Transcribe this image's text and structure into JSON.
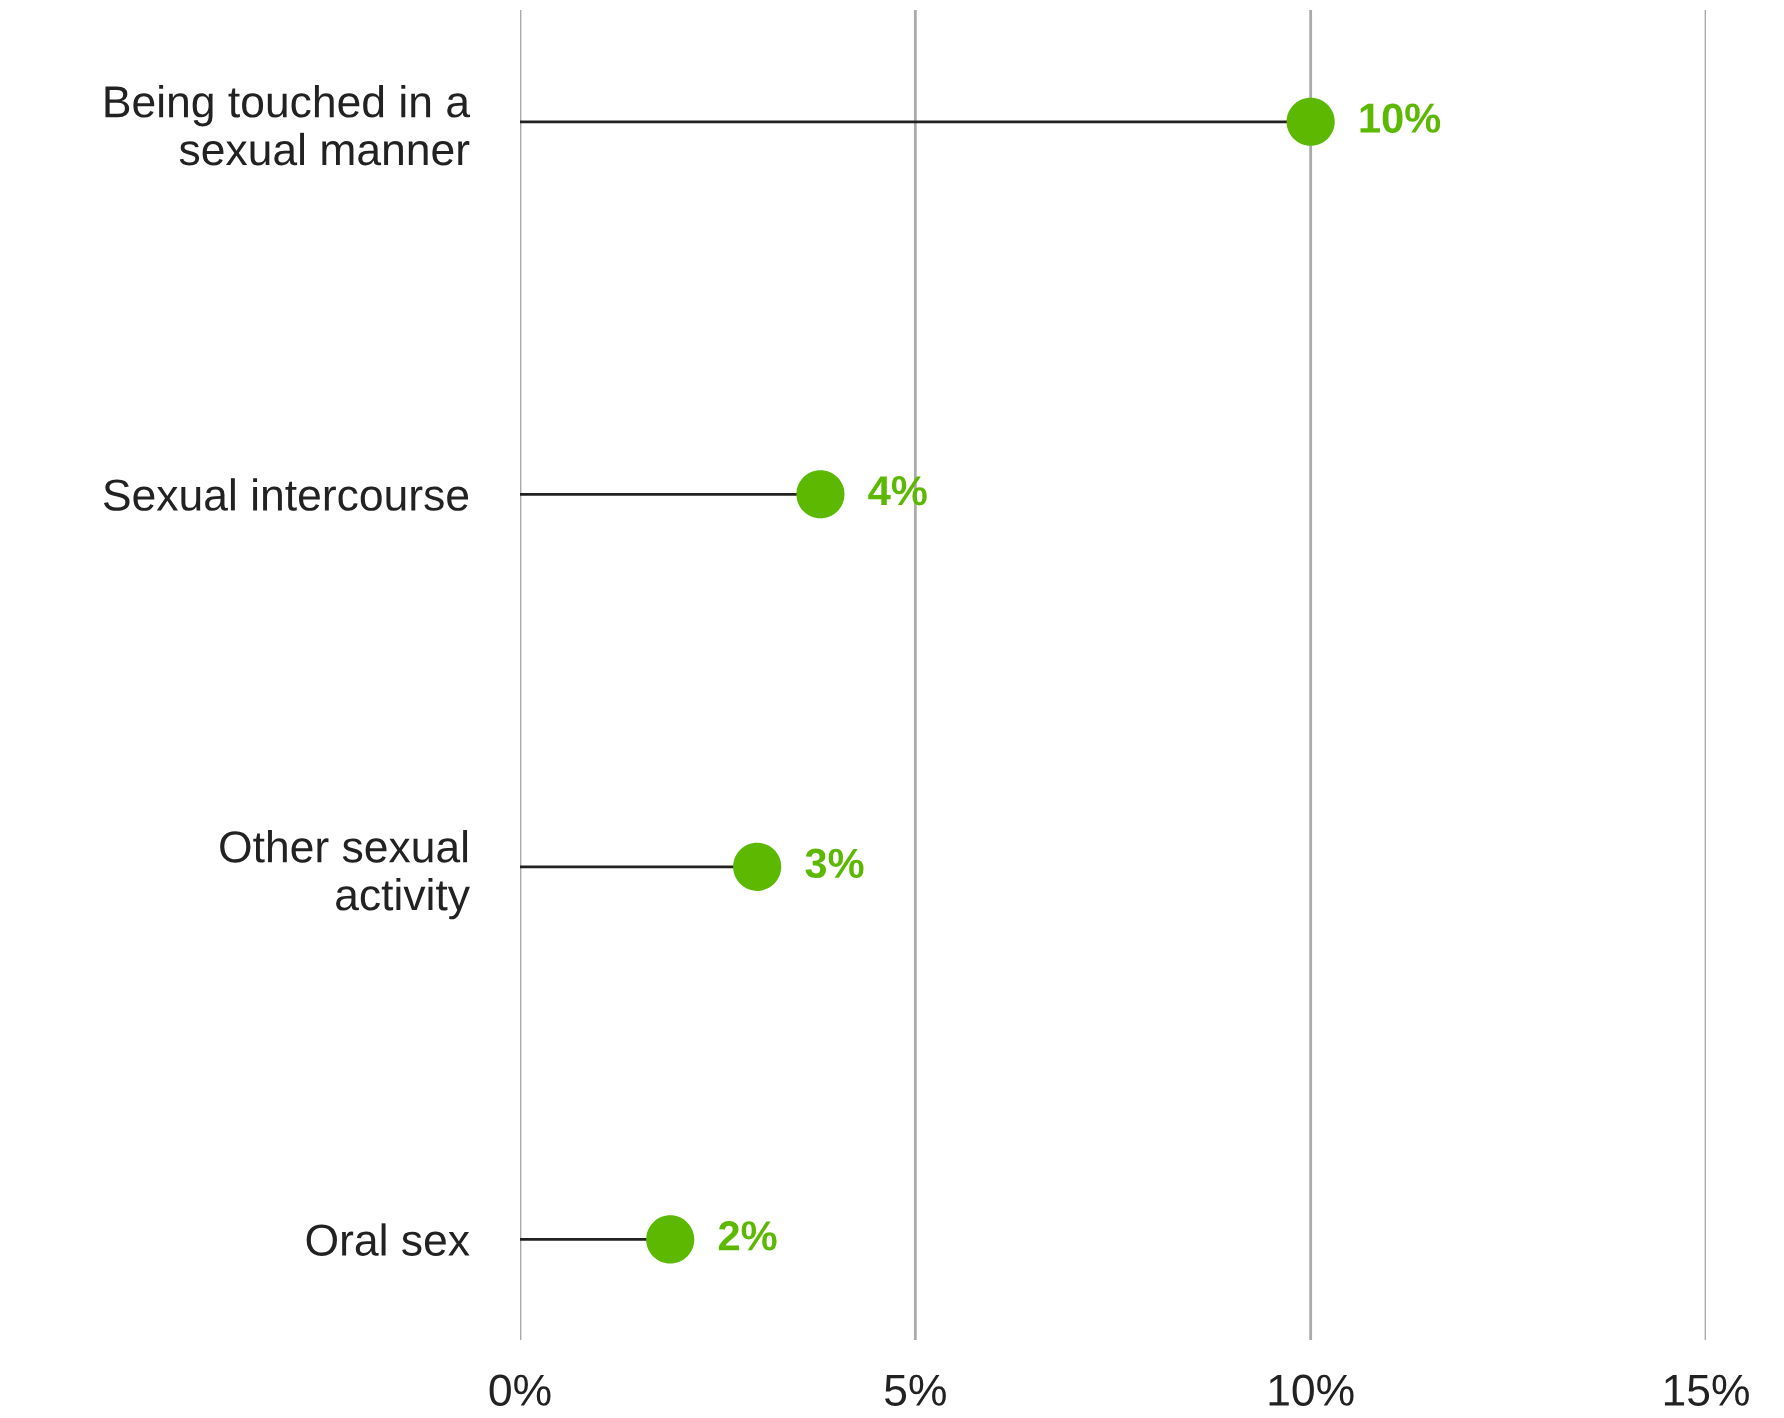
{
  "chart_data": {
    "type": "lollipop",
    "orientation": "horizontal",
    "categories": [
      "Being touched in a\nsexual manner",
      "Sexual intercourse",
      "Other sexual\nactivity",
      "Oral sex"
    ],
    "values": [
      10,
      3.8,
      3.0,
      1.9
    ],
    "value_labels": [
      "10%",
      "4%",
      "3%",
      "2%"
    ],
    "color": "#5cb800",
    "xlim": [
      0,
      15
    ],
    "xticks": [
      {
        "value": 0,
        "label": "0%"
      },
      {
        "value": 5,
        "label": "5%"
      },
      {
        "value": 10,
        "label": "10%"
      },
      {
        "value": 15,
        "label": "15%"
      }
    ],
    "grid": "x"
  }
}
